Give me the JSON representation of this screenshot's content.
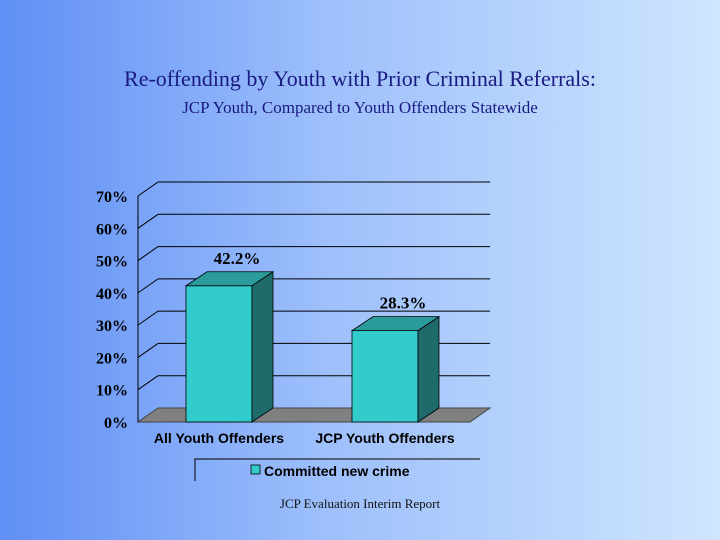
{
  "slide": {
    "title": "Re-offending by Youth with Prior Criminal Referrals:",
    "subtitle": "JCP Youth, Compared to Youth Offenders Statewide",
    "footer": "JCP Evaluation Interim Report"
  },
  "colors": {
    "bar_front": "#33cccc",
    "bar_side": "#1f6b6b",
    "bar_top": "#2a9a9a",
    "floor": "#808080",
    "grid": "#000000"
  },
  "chart_data": {
    "type": "bar",
    "categories": [
      "All Youth Offenders",
      "JCP Youth Offenders"
    ],
    "series": [
      {
        "name": "Committed new crime",
        "values": [
          42.2,
          28.3
        ]
      }
    ],
    "data_labels": [
      "42.2%",
      "28.3%"
    ],
    "y_ticks": [
      "0%",
      "10%",
      "20%",
      "30%",
      "40%",
      "50%",
      "60%",
      "70%"
    ],
    "ylim": [
      0,
      70
    ],
    "grid": true,
    "legend_position": "bottom",
    "style": "3d-column"
  }
}
